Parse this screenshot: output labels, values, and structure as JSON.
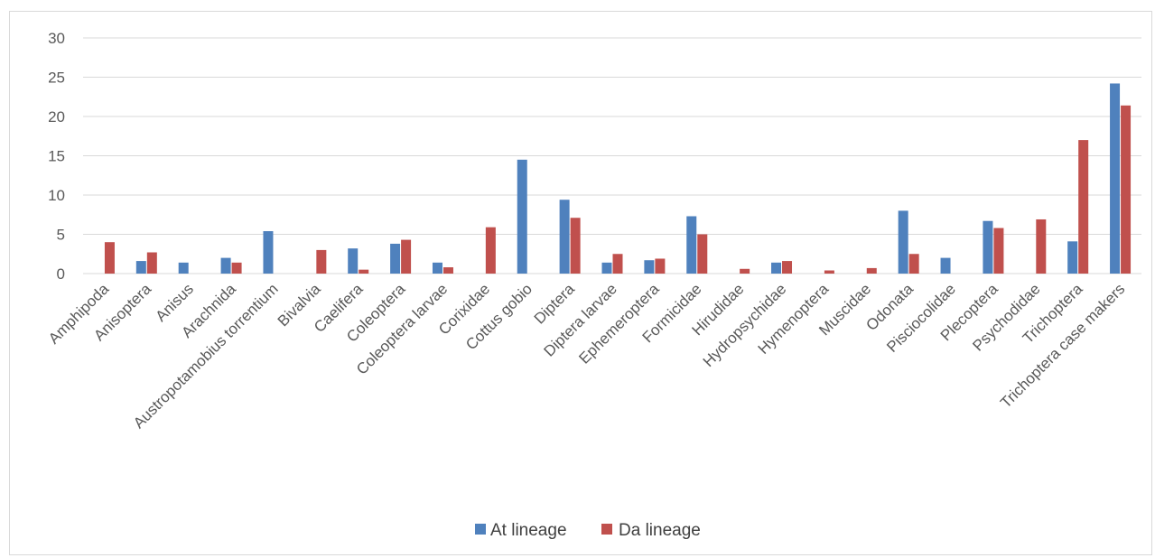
{
  "chart_data": {
    "type": "bar",
    "title": "",
    "xlabel": "",
    "ylabel": "",
    "ylim": [
      0,
      30
    ],
    "yticks": [
      0,
      5,
      10,
      15,
      20,
      25,
      30
    ],
    "grid": true,
    "legend_position": "bottom",
    "categories": [
      "Amphipoda",
      "Anisoptera",
      "Anisus",
      "Arachnida",
      "Austropotamobius torrentium",
      "Bivalvia",
      "Caelifera",
      "Coleoptera",
      "Coleoptera larvae",
      "Corixidae",
      "Cottus gobio",
      "Diptera",
      "Diptera larvae",
      "Ephemeroptera",
      "Formicidae",
      "Hirudidae",
      "Hydropsychidae",
      "Hymenoptera",
      "Muscidae",
      "Odonata",
      "Pisciocolidae",
      "Plecoptera",
      "Psychodidae",
      "Trichoptera",
      "Trichoptera case makers"
    ],
    "series": [
      {
        "name": "At lineage",
        "color": "#4f81bd",
        "values": [
          0,
          1.6,
          1.4,
          2.0,
          5.4,
          0,
          3.2,
          3.8,
          1.4,
          0,
          14.5,
          9.4,
          1.4,
          1.7,
          7.3,
          0,
          1.4,
          0,
          0,
          8.0,
          2.0,
          6.7,
          0,
          4.1,
          24.2
        ]
      },
      {
        "name": "Da lineage",
        "color": "#c0504d",
        "values": [
          4.0,
          2.7,
          0,
          1.4,
          0,
          3.0,
          0.5,
          4.3,
          0.8,
          5.9,
          0,
          7.1,
          2.5,
          1.9,
          5.0,
          0.6,
          1.6,
          0.4,
          0.7,
          2.5,
          0,
          5.8,
          6.9,
          17.0,
          21.4
        ]
      }
    ]
  }
}
